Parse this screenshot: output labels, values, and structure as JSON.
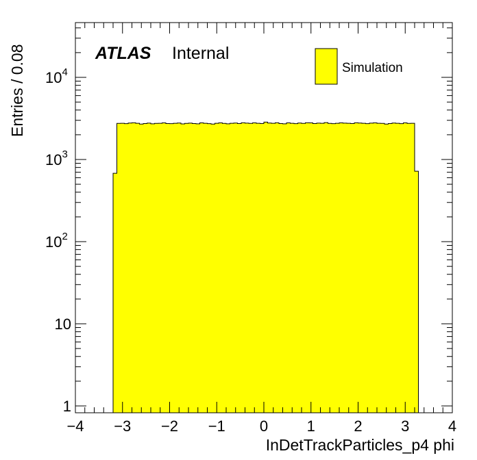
{
  "chart_data": {
    "type": "bar",
    "title": "",
    "xlabel": "InDetTrackParticles_p4 phi",
    "ylabel": "Entries / 0.08",
    "xlim": [
      -4,
      4
    ],
    "ylim": [
      0.8,
      40000
    ],
    "log_y": true,
    "bin_width": 0.08,
    "bin_start": -3.2,
    "x_ticks": [
      "−4",
      "−3",
      "−2",
      "−1",
      "0",
      "1",
      "2",
      "3",
      "4"
    ],
    "y_ticks": [
      {
        "value": 1,
        "label": "1"
      },
      {
        "value": 10,
        "label": "10"
      },
      {
        "value": 100,
        "base": "10",
        "exp": "2"
      },
      {
        "value": 1000,
        "base": "10",
        "exp": "3"
      },
      {
        "value": 10000,
        "base": "10",
        "exp": "4"
      }
    ],
    "series": [
      {
        "name": "Simulation",
        "color": "#ffff00",
        "values": [
          680,
          2750,
          2760,
          2730,
          2780,
          2800,
          2760,
          2700,
          2740,
          2770,
          2720,
          2750,
          2760,
          2790,
          2740,
          2730,
          2760,
          2780,
          2710,
          2750,
          2770,
          2740,
          2720,
          2790,
          2760,
          2730,
          2700,
          2760,
          2790,
          2750,
          2720,
          2760,
          2780,
          2740,
          2800,
          2770,
          2750,
          2790,
          2760,
          2740,
          2850,
          2780,
          2760,
          2800,
          2740,
          2720,
          2790,
          2760,
          2730,
          2780,
          2750,
          2800,
          2790,
          2740,
          2770,
          2760,
          2810,
          2750,
          2730,
          2760,
          2790,
          2770,
          2760,
          2740,
          2800,
          2780,
          2760,
          2730,
          2770,
          2790,
          2760,
          2750,
          2700,
          2740,
          2780,
          2760,
          2730,
          2790,
          2750,
          2760,
          720
        ]
      }
    ],
    "legend": {
      "position": "top-right",
      "label": "Simulation"
    },
    "annotations": {
      "atlas": "ATLAS",
      "status": "Internal"
    },
    "grid": false
  }
}
